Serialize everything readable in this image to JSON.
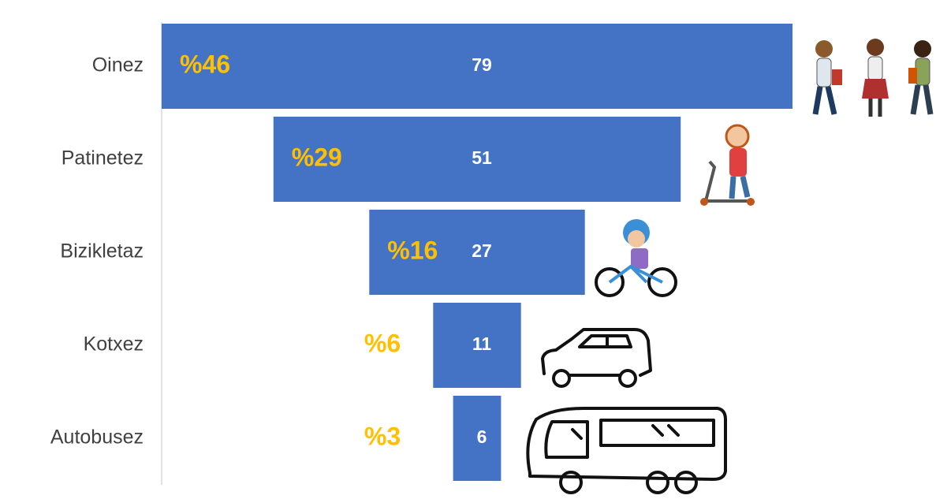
{
  "chart_data": {
    "type": "funnel",
    "categories": [
      "Oinez",
      "Patinetez",
      "Bizikletaz",
      "Kotxez",
      "Autobusez"
    ],
    "values": [
      79,
      51,
      27,
      11,
      6
    ],
    "share_labels": [
      "%46",
      "%29",
      "%16",
      "%6",
      "%3"
    ],
    "color": "#4472c4"
  }
}
